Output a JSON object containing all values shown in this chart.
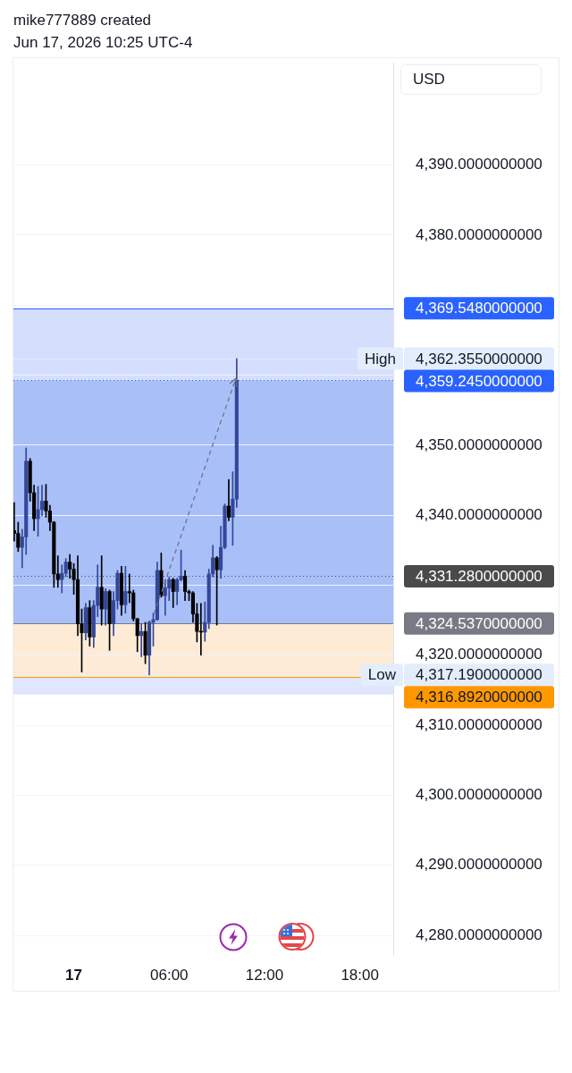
{
  "chart_data": {
    "type": "candlestick",
    "title": "mike777889 created",
    "subtitle": "Jun 17, 2026 10:25 UTC-4",
    "ylabel": "USD",
    "x": [
      "2026-06-16T20:15",
      "2026-06-16T20:30",
      "2026-06-16T20:45",
      "2026-06-16T21:00",
      "2026-06-16T21:15",
      "2026-06-16T21:30",
      "2026-06-16T21:45",
      "2026-06-16T22:00",
      "2026-06-16T22:15",
      "2026-06-16T22:30",
      "2026-06-16T22:45",
      "2026-06-16T23:00",
      "2026-06-16T23:15",
      "2026-06-16T23:30",
      "2026-06-16T23:45",
      "2026-06-17T00:00",
      "2026-06-17T00:15",
      "2026-06-17T00:30",
      "2026-06-17T00:45",
      "2026-06-17T01:00",
      "2026-06-17T01:15",
      "2026-06-17T01:30",
      "2026-06-17T01:45",
      "2026-06-17T02:00",
      "2026-06-17T02:15",
      "2026-06-17T02:30",
      "2026-06-17T02:45",
      "2026-06-17T03:00",
      "2026-06-17T03:15",
      "2026-06-17T03:30",
      "2026-06-17T03:45",
      "2026-06-17T04:00",
      "2026-06-17T04:15",
      "2026-06-17T04:30",
      "2026-06-17T04:45",
      "2026-06-17T05:00",
      "2026-06-17T05:15",
      "2026-06-17T05:30",
      "2026-06-17T05:45",
      "2026-06-17T06:00",
      "2026-06-17T06:15",
      "2026-06-17T06:30",
      "2026-06-17T06:45",
      "2026-06-17T07:00",
      "2026-06-17T07:15",
      "2026-06-17T07:30",
      "2026-06-17T07:45",
      "2026-06-17T08:00",
      "2026-06-17T08:15",
      "2026-06-17T08:30",
      "2026-06-17T08:45",
      "2026-06-17T09:00",
      "2026-06-17T09:15",
      "2026-06-17T09:30",
      "2026-06-17T09:45",
      "2026-06-17T10:00",
      "2026-06-17T10:15"
    ],
    "ohlc": [
      [
        4337.8,
        4341.8,
        4336.3,
        4337.4
      ],
      [
        4337.4,
        4339.0,
        4334.8,
        4335.4
      ],
      [
        4335.4,
        4338.0,
        4332.5,
        4336.9
      ],
      [
        4336.9,
        4349.6,
        4334.4,
        4347.7
      ],
      [
        4347.7,
        4348.1,
        4342.0,
        4343.2
      ],
      [
        4343.2,
        4344.3,
        4337.8,
        4339.5
      ],
      [
        4339.5,
        4344.1,
        4337.0,
        4340.8
      ],
      [
        4340.8,
        4344.3,
        4339.9,
        4342.0
      ],
      [
        4342.0,
        4344.4,
        4339.7,
        4340.6
      ],
      [
        4340.6,
        4341.4,
        4337.8,
        4339.0
      ],
      [
        4339.0,
        4339.1,
        4329.7,
        4331.6
      ],
      [
        4331.6,
        4334.2,
        4329.7,
        4330.8
      ],
      [
        4330.8,
        4332.9,
        4328.9,
        4331.7
      ],
      [
        4331.7,
        4333.8,
        4331.2,
        4333.3
      ],
      [
        4333.3,
        4334.4,
        4331.0,
        4332.3
      ],
      [
        4332.3,
        4333.1,
        4328.7,
        4330.8
      ],
      [
        4330.8,
        4334.2,
        4322.8,
        4324.5
      ],
      [
        4324.5,
        4326.6,
        4317.6,
        4323.2
      ],
      [
        4323.2,
        4327.4,
        4322.2,
        4326.8
      ],
      [
        4326.8,
        4327.8,
        4321.3,
        4322.6
      ],
      [
        4322.6,
        4327.8,
        4321.1,
        4327.1
      ],
      [
        4327.1,
        4332.9,
        4325.5,
        4329.7
      ],
      [
        4329.7,
        4334.2,
        4324.3,
        4326.6
      ],
      [
        4326.6,
        4329.5,
        4324.3,
        4329.1
      ],
      [
        4329.1,
        4329.3,
        4320.7,
        4324.5
      ],
      [
        4324.5,
        4329.1,
        4322.8,
        4327.8
      ],
      [
        4327.8,
        4332.1,
        4326.6,
        4331.7
      ],
      [
        4331.7,
        4332.7,
        4325.7,
        4327.2
      ],
      [
        4327.2,
        4332.7,
        4326.0,
        4329.1
      ],
      [
        4329.1,
        4331.6,
        4327.5,
        4328.9
      ],
      [
        4328.9,
        4329.3,
        4324.9,
        4325.2
      ],
      [
        4325.2,
        4325.3,
        4320.5,
        4322.8
      ],
      [
        4322.8,
        4324.5,
        4319.8,
        4323.4
      ],
      [
        4323.4,
        4324.7,
        4318.8,
        4320.0
      ],
      [
        4320.0,
        4324.9,
        4317.19,
        4324.7
      ],
      [
        4324.7,
        4326.0,
        4321.3,
        4325.1
      ],
      [
        4325.1,
        4333.3,
        4325.0,
        4332.1
      ],
      [
        4332.1,
        4334.6,
        4328.3,
        4328.5
      ],
      [
        4328.5,
        4330.8,
        4325.7,
        4329.6
      ],
      [
        4329.6,
        4331.2,
        4327.8,
        4330.8
      ],
      [
        4330.8,
        4331.0,
        4326.8,
        4329.1
      ],
      [
        4329.1,
        4331.0,
        4327.2,
        4330.8
      ],
      [
        4330.8,
        4335.0,
        4330.6,
        4331.3
      ],
      [
        4331.3,
        4332.1,
        4327.8,
        4329.1
      ],
      [
        4329.1,
        4329.3,
        4327.8,
        4328.9
      ],
      [
        4328.9,
        4329.1,
        4324.7,
        4325.9
      ],
      [
        4325.9,
        4327.4,
        4321.9,
        4323.4
      ],
      [
        4323.4,
        4327.4,
        4320.0,
        4323.3
      ],
      [
        4323.3,
        4327.6,
        4322.0,
        4324.7
      ],
      [
        4324.7,
        4332.3,
        4323.8,
        4331.6
      ],
      [
        4331.6,
        4335.7,
        4331.2,
        4333.9
      ],
      [
        4333.9,
        4334.1,
        4324.3,
        4332.2
      ],
      [
        4332.2,
        4338.4,
        4331.0,
        4335.4
      ],
      [
        4335.4,
        4341.6,
        4335.2,
        4341.3
      ],
      [
        4341.3,
        4345.1,
        4339.2,
        4339.7
      ],
      [
        4339.7,
        4346.2,
        4335.7,
        4342.3
      ],
      [
        4342.3,
        4362.355,
        4341.1,
        4359.245
      ]
    ],
    "colors": [
      "#000000",
      "#000000",
      "#33479a",
      "#33479a",
      "#000000",
      "#000000",
      "#33479a",
      "#33479a",
      "#000000",
      "#000000",
      "#000000",
      "#000000",
      "#33479a",
      "#33479a",
      "#000000",
      "#000000",
      "#000000",
      "#000000",
      "#33479a",
      "#000000",
      "#33479a",
      "#33479a",
      "#000000",
      "#33479a",
      "#000000",
      "#33479a",
      "#33479a",
      "#000000",
      "#33479a",
      "#000000",
      "#000000",
      "#000000",
      "#33479a",
      "#000000",
      "#33479a",
      "#33479a",
      "#33479a",
      "#000000",
      "#33479a",
      "#33479a",
      "#000000",
      "#33479a",
      "#33479a",
      "#000000",
      "#000000",
      "#000000",
      "#000000",
      "#000000",
      "#33479a",
      "#33479a",
      "#33479a",
      "#000000",
      "#33479a",
      "#33479a",
      "#000000",
      "#33479a",
      "#33479a"
    ],
    "xlim": [
      "2026-06-16T20:12",
      "2026-06-17T20:06"
    ],
    "xticks": [
      {
        "value": "2026-06-17",
        "label": "17"
      },
      {
        "value": "2026-06-17T06:00",
        "label": "06:00"
      },
      {
        "value": "2026-06-17T12:00",
        "label": "12:00"
      },
      {
        "value": "2026-06-17T18:00",
        "label": "18:00"
      }
    ],
    "ylim": [
      4277.2,
      4404.6
    ],
    "yticks": [
      {
        "value": 4280,
        "label": "4,280.0000000000"
      },
      {
        "value": 4290,
        "label": "4,290.0000000000"
      },
      {
        "value": 4300,
        "label": "4,300.0000000000"
      },
      {
        "value": 4310,
        "label": "4,310.0000000000"
      },
      {
        "value": 4320,
        "label": "4,320.0000000000"
      },
      {
        "value": 4330,
        "label": null
      },
      {
        "value": 4340,
        "label": "4,340.0000000000"
      },
      {
        "value": 4350,
        "label": "4,350.0000000000"
      },
      {
        "value": 4360,
        "label": null
      },
      {
        "value": 4370,
        "label": null
      },
      {
        "value": 4380,
        "label": "4,380.0000000000"
      },
      {
        "value": 4390,
        "label": "4,390.0000000000"
      }
    ],
    "grid": "y",
    "bands": [
      {
        "axis": "y",
        "from": 4314.4,
        "to": 4324.5,
        "color": "#dfe6fd"
      },
      {
        "axis": "y",
        "from": 4316.892,
        "to": 4324.537,
        "color": "#fdebd6"
      },
      {
        "axis": "y",
        "from": 4324.537,
        "to": 4369.548,
        "color": "#d4defd"
      },
      {
        "axis": "y",
        "from": 4324.537,
        "to": 4359.245,
        "color": "#a9bff8"
      }
    ],
    "ref_lines": [
      {
        "axis": "y",
        "value": 4369.548,
        "label": "4,369.5480000000",
        "color": "#2962ff"
      },
      {
        "axis": "y",
        "value": 4362.355,
        "label": "4,362.3550000000",
        "color": "#e3edfc"
      },
      {
        "axis": "y",
        "value": 4359.245,
        "label": "4,359.2450000000",
        "color": "#2962ff",
        "line_style": "dotted"
      },
      {
        "axis": "y",
        "value": 4331.28,
        "label": "4,331.2800000000",
        "color": "#4a4a4a",
        "line_style": "dotted"
      },
      {
        "axis": "y",
        "value": 4324.537,
        "label": "4,324.5370000000",
        "color": "#787b86"
      },
      {
        "axis": "y",
        "value": 4317.19,
        "label": "4,317.1900000000",
        "color": "#e3edfc"
      },
      {
        "axis": "y",
        "value": 4316.892,
        "label": "4,316.8920000000",
        "color": "#ff9800"
      }
    ],
    "annotations": [
      {
        "text": "High",
        "y": 4362.355
      },
      {
        "text": "Low",
        "y": 4317.19
      }
    ]
  }
}
